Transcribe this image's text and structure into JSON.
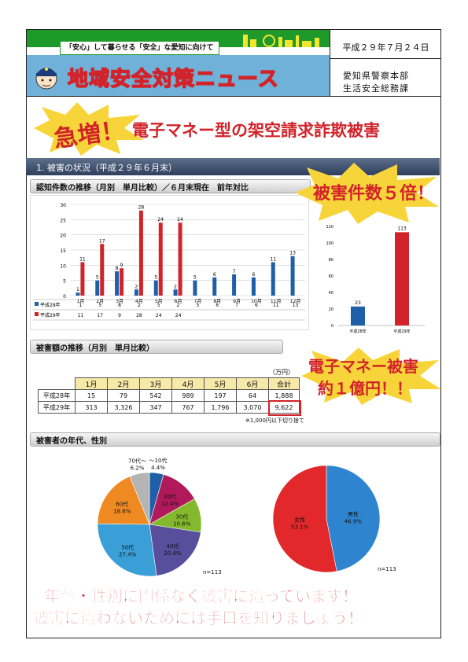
{
  "header": {
    "tagline": "「安心」して暮らせる「安全」な愛知に向けて",
    "title": "地域安全対策ニュース",
    "date": "平成２９年７月２４日",
    "org_line1": "愛知県警察本部",
    "org_line2": "生活安全総務課",
    "colors": {
      "green": "#1e9a2a",
      "blue": "#6fb1d8",
      "title_fill": "#f3e62c",
      "title_outline": "#d2232a"
    }
  },
  "headline": {
    "burst": "急増！",
    "text": "電子マネー型の架空請求詐欺被害"
  },
  "section1": {
    "label": "1. 被害の状況（平成２９年６月末）"
  },
  "sub_cases": {
    "label": "認知件数の推移（月別　単月比較）／６月末現在　前年対比"
  },
  "callout_cases": "被害件数５倍！",
  "sub_amount": {
    "label": "被害額の推移（月別　単月比較）"
  },
  "callout_amount": {
    "line1": "電子マネー被害",
    "line2": "約１億円！！"
  },
  "amount_table": {
    "unit": "（万円）",
    "headers": [
      "1月",
      "2月",
      "3月",
      "4月",
      "5月",
      "6月",
      "合計"
    ],
    "rows": [
      {
        "label": "平成28年",
        "values": [
          "15",
          "79",
          "542",
          "989",
          "197",
          "64",
          "1,888"
        ]
      },
      {
        "label": "平成29年",
        "values": [
          "313",
          "3,326",
          "347",
          "767",
          "1,796",
          "3,070",
          "9,622"
        ]
      }
    ],
    "note": "※1,000円以下切り捨て"
  },
  "sub_victims": {
    "label": "被害者の年代、性別"
  },
  "age_pie_n": "n=113",
  "gender_pie_n": "n=113",
  "bottom": {
    "line1": "年齢・性別に関係なく被害に遭っています！",
    "line2": "被害に遭わないためには手口を知りましょう！"
  },
  "chart_data": [
    {
      "type": "bar",
      "categories": [
        "1月",
        "2月",
        "3月",
        "4月",
        "5月",
        "6月",
        "7月",
        "8月",
        "9月",
        "10月",
        "11月",
        "12月"
      ],
      "series": [
        {
          "name": "平成28年",
          "values": [
            1,
            5,
            8,
            2,
            5,
            2,
            5,
            6,
            7,
            6,
            11,
            13
          ],
          "color": "#1f5fa8"
        },
        {
          "name": "平成29年",
          "values": [
            11,
            17,
            9,
            28,
            24,
            24,
            null,
            null,
            null,
            null,
            null,
            null
          ],
          "color": "#d2232a"
        }
      ],
      "table_rows": [
        {
          "label": "平成28年",
          "values": [
            "1",
            "5",
            "8",
            "2",
            "5",
            "2",
            "5",
            "6",
            "7",
            "6",
            "11",
            "13"
          ]
        },
        {
          "label": "平成29年",
          "values": [
            "11",
            "17",
            "9",
            "28",
            "24",
            "24",
            "",
            "",
            "",
            "",
            "",
            ""
          ]
        }
      ],
      "ylim": [
        0,
        30
      ],
      "yticks": [
        "0",
        "5",
        "10",
        "15",
        "20",
        "25",
        "30"
      ],
      "grid": true,
      "legend": "table-bottom"
    },
    {
      "type": "bar",
      "categories": [
        "平成28年",
        "平成29年"
      ],
      "values": [
        23,
        113
      ],
      "colors": [
        "#1f5fa8",
        "#d2232a"
      ],
      "ylim": [
        0,
        120
      ],
      "yticks": [
        "0",
        "20",
        "40",
        "60",
        "80",
        "100",
        "120"
      ],
      "grid": false
    },
    {
      "type": "pie",
      "labels": [
        "~10代",
        "20代",
        "30代",
        "40代",
        "50代",
        "60代",
        "70代~"
      ],
      "label_lines": [
        [
          "～10代",
          "4.4%"
        ],
        [
          "20代",
          "12.4%"
        ],
        [
          "30代",
          "10.6%"
        ],
        [
          "40代",
          "20.4%"
        ],
        [
          "50代",
          "27.4%"
        ],
        [
          "60代",
          "18.6%"
        ],
        [
          "70代～",
          "6.2%"
        ]
      ],
      "values": [
        4.4,
        12.4,
        10.6,
        20.4,
        27.4,
        18.6,
        6.2
      ],
      "colors": [
        "#1f5fa8",
        "#b0195a",
        "#84b92e",
        "#574e9c",
        "#3a9fd6",
        "#ef8a22",
        "#b4b4b4"
      ]
    },
    {
      "type": "pie",
      "labels": [
        "男性",
        "女性"
      ],
      "label_lines": [
        [
          "男性",
          "46.9%"
        ],
        [
          "女性",
          "53.1%"
        ]
      ],
      "values": [
        46.9,
        53.1
      ],
      "colors": [
        "#2f84d0",
        "#e2282b"
      ]
    }
  ]
}
